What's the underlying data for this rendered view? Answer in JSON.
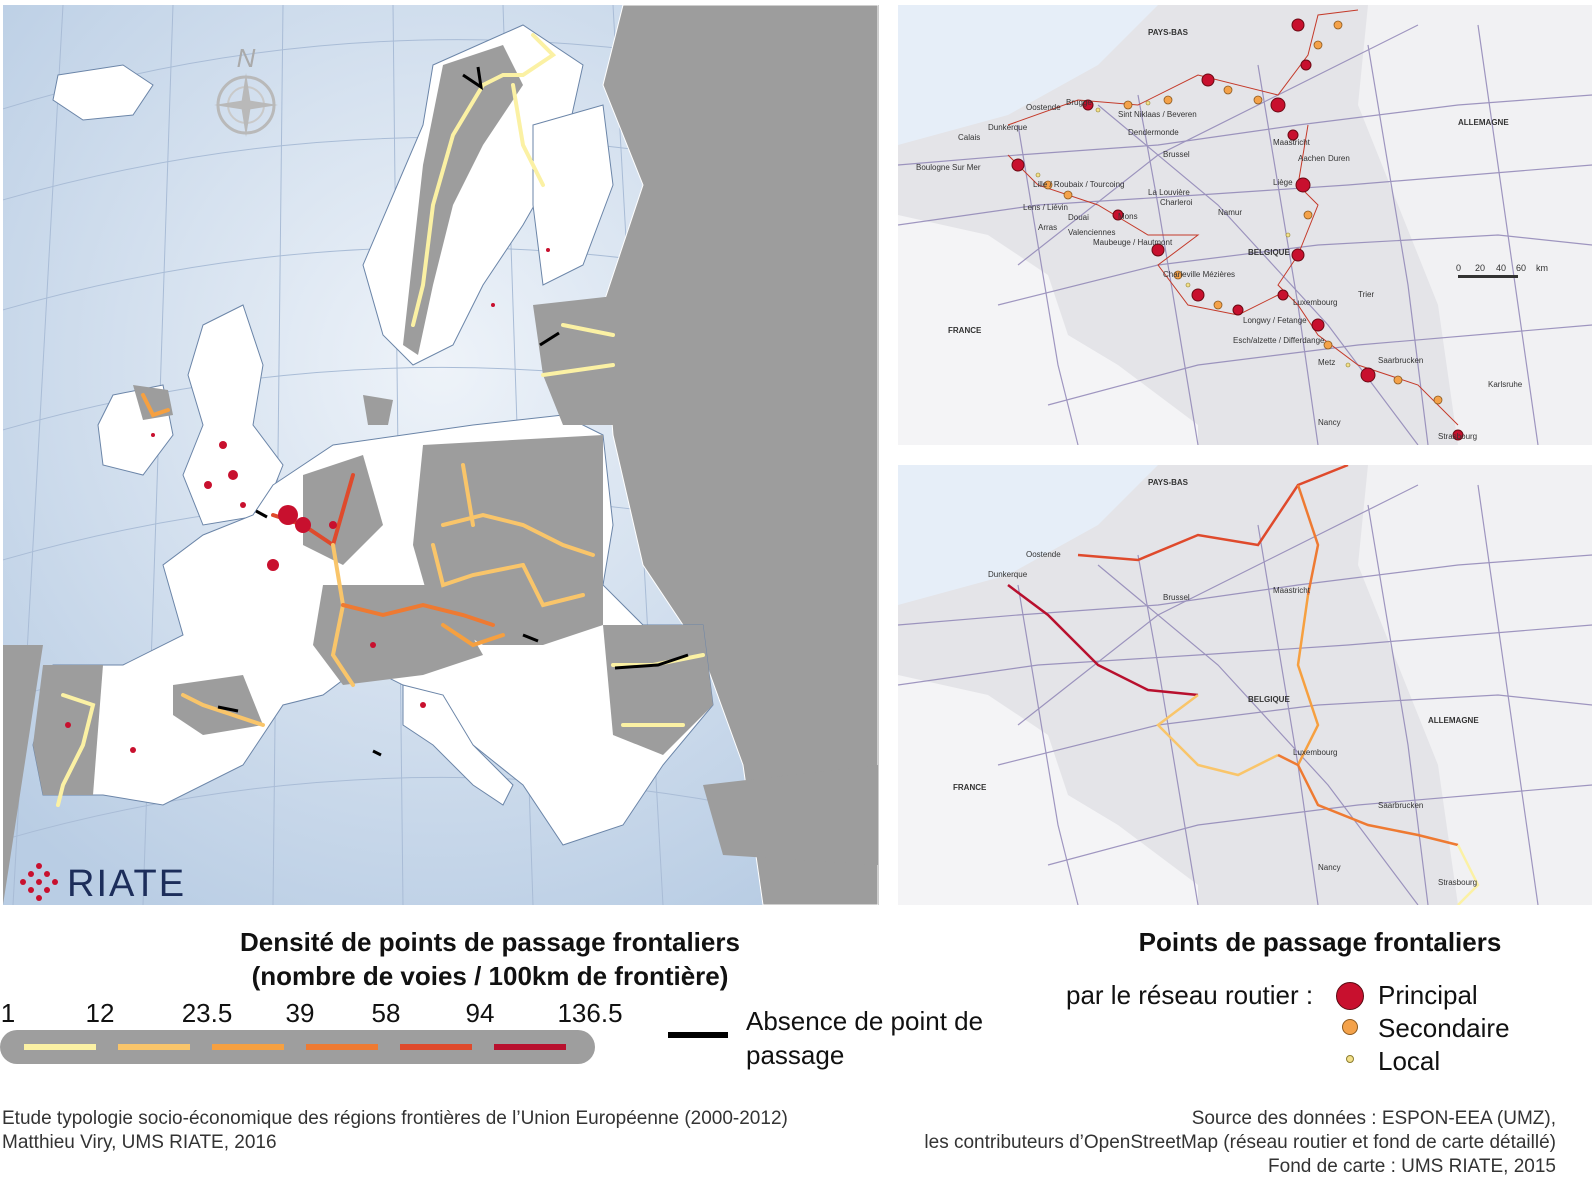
{
  "europe_map": {
    "north_label": "N",
    "logo_text": "RIATE"
  },
  "zoom_top": {
    "labels": {
      "pays_bas": "PAYS-BAS",
      "allemagne": "ALLEMAGNE",
      "belgique": "BELGIQUE",
      "france": "FRANCE",
      "oostende": "Oostende",
      "brugge": "Brugge",
      "sint_niklaas": "Sint Niklaas / Beveren",
      "dendermonde": "Dendermonde",
      "calais": "Calais",
      "dunkerque": "Dunkerque",
      "boulogne": "Boulogne Sur Mer",
      "brussel": "Brussel",
      "maastricht": "Maastricht",
      "aachen": "Aachen",
      "duren": "Duren",
      "liege": "Liège",
      "lille": "Lille / Roubaix / Tourcoing",
      "la_louviere": "La Louvière",
      "charleroi": "Charleroi",
      "namur": "Namur",
      "lens": "Lens / Liévin",
      "douai": "Douai",
      "arras": "Arras",
      "valenciennes": "Valenciennes",
      "mons": "Mons",
      "maubeuge": "Maubeuge / Hautmont",
      "charleville": "Charleville Mézières",
      "luxembourg": "Luxembourg",
      "trier": "Trier",
      "longwy": "Longwy / Fetange",
      "esch": "Esch/alzette / Differdange",
      "metz": "Metz",
      "saarbrucken": "Saarbrucken",
      "karlsruhe": "Karlsruhe",
      "nancy": "Nancy",
      "strasbourg": "Strasbourg"
    },
    "scale": {
      "ticks": [
        "0",
        "20",
        "40",
        "60"
      ],
      "unit": "km"
    }
  },
  "legend": {
    "density_title_line1": "Densité de points de passage frontaliers",
    "density_title_line2": "(nombre de voies / 100km de frontière)",
    "ticks": [
      "1",
      "12",
      "23.5",
      "39",
      "58",
      "94",
      "136.5"
    ],
    "absence_label": "Absence de point de passage",
    "points_title": "Points de passage frontaliers",
    "reseau_label": "par le réseau routier :",
    "categories": [
      {
        "label": "Principal",
        "color": "#c8102e"
      },
      {
        "label": "Secondaire",
        "color": "#f4a24a"
      },
      {
        "label": "Local",
        "color": "#f3e08a"
      }
    ],
    "density_colors": [
      "#fbf1a4",
      "#f9c56a",
      "#f6a040",
      "#ee7a32",
      "#df4a2c",
      "#b8102e"
    ]
  },
  "footer": {
    "left_line1": "Etude typologie socio-économique des régions frontières de l’Union Européenne (2000-2012)",
    "left_line2": "Matthieu Viry, UMS RIATE, 2016",
    "right_line1": "Source des données : ESPON-EEA (UMZ),",
    "right_line2": "les contributeurs d’OpenStreetMap (réseau routier et fond de carte détaillé)",
    "right_line3": "Fond de carte : UMS RIATE, 2015"
  }
}
